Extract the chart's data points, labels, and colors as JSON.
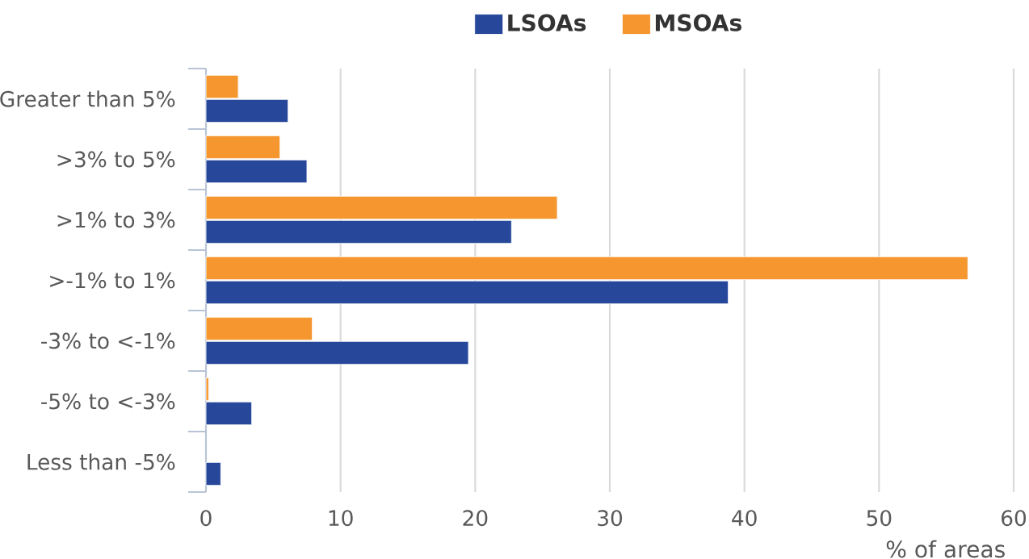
{
  "chart_data": {
    "type": "bar",
    "orientation": "horizontal",
    "xlabel": "% of areas",
    "categories": [
      "Greater than 5%",
      ">3% to 5%",
      ">1% to 3%",
      ">-1% to 1%",
      "-3% to <-1%",
      "-5% to <-3%",
      "Less than -5%"
    ],
    "series": [
      {
        "name": "LSOAs",
        "color": "#27479a",
        "values": [
          6.1,
          7.5,
          22.7,
          38.8,
          19.5,
          3.4,
          1.1
        ]
      },
      {
        "name": "MSOAs",
        "color": "#f5962f",
        "values": [
          2.4,
          5.5,
          26.1,
          56.6,
          7.9,
          0.2,
          null
        ]
      }
    ],
    "xlim": [
      0,
      60
    ],
    "xticks": [
      0,
      10,
      20,
      30,
      40,
      50,
      60
    ],
    "grid": "x",
    "legend": "top"
  }
}
